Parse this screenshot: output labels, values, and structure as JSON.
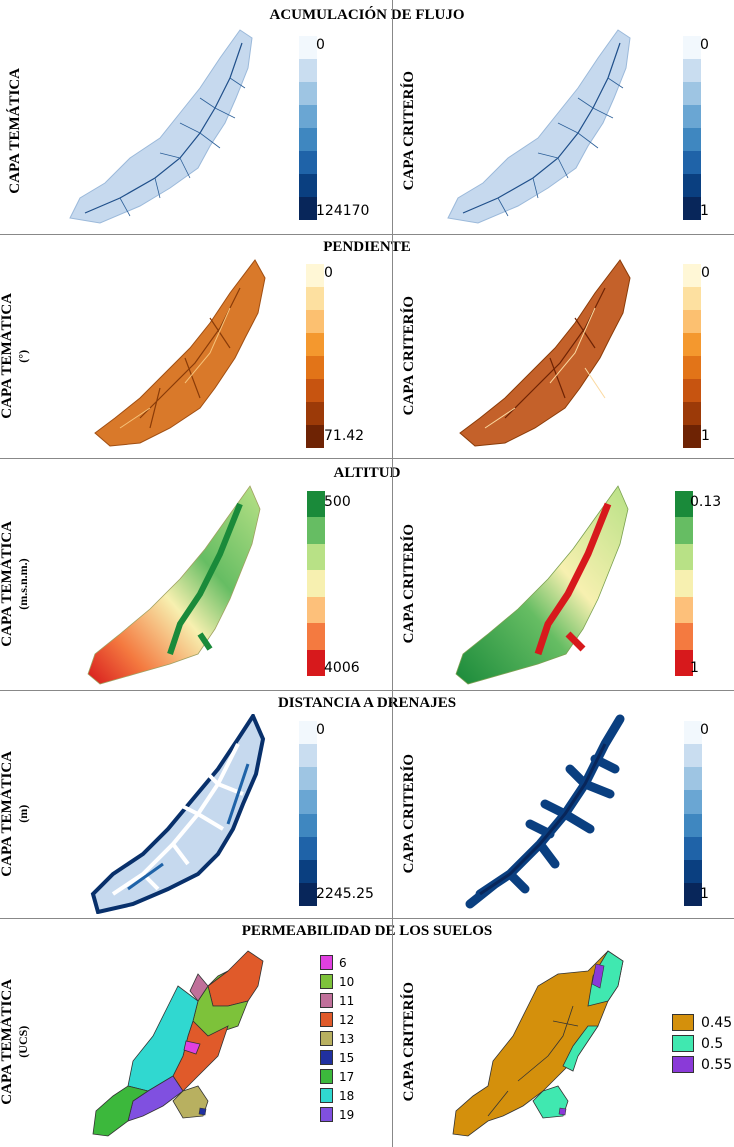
{
  "sections": [
    {
      "title": "ACUMULACIÓN DE FLUJO",
      "left_label": "CAPA TEMÁTICA",
      "left_sub": "",
      "right_label": "CAPA CRITERÍO",
      "left_legend": {
        "top": "0",
        "bottom": "124170"
      },
      "right_legend": {
        "top": "0",
        "bottom": "1"
      }
    },
    {
      "title": "PENDIENTE",
      "left_label": "CAPA TEMÁTICA",
      "left_sub": "(°)",
      "right_label": "CAPA CRITERÍO",
      "left_legend": {
        "top": "0",
        "bottom": "71.42"
      },
      "right_legend": {
        "top": "0",
        "bottom": "1"
      }
    },
    {
      "title": "ALTITUD",
      "left_label": "CAPA TEMÁTICA",
      "left_sub": "(m.s.n.m.)",
      "right_label": "CAPA CRITERÍO",
      "left_legend": {
        "top": "500",
        "bottom": "4006"
      },
      "right_legend": {
        "top": "0.13",
        "bottom": "1"
      }
    },
    {
      "title": "DISTANCIA A DRENAJES",
      "left_label": "CAPA TEMÁTICA",
      "left_sub": "(m)",
      "right_label": "CAPA CRITERÍO",
      "left_legend": {
        "top": "0",
        "bottom": "2245.25"
      },
      "right_legend": {
        "top": "0",
        "bottom": "1"
      }
    },
    {
      "title": "PERMEABILIDAD DE LOS SUELOS",
      "left_label": "CAPA TEMÁTICA",
      "left_sub": "(UCS)",
      "right_label": "CAPA CRITERÍO"
    }
  ],
  "soil_classes": [
    {
      "label": "6",
      "color": "#e040e0"
    },
    {
      "label": "10",
      "color": "#7dc23a"
    },
    {
      "label": "11",
      "color": "#c0709a"
    },
    {
      "label": "12",
      "color": "#e05a2a"
    },
    {
      "label": "13",
      "color": "#b8b060"
    },
    {
      "label": "15",
      "color": "#2030a0"
    },
    {
      "label": "17",
      "color": "#3cb83c"
    },
    {
      "label": "18",
      "color": "#30d8d0"
    },
    {
      "label": "19",
      "color": "#8050e0"
    }
  ],
  "criterion_classes": [
    {
      "label": "0.45",
      "color": "#d4900c"
    },
    {
      "label": "0.5",
      "color": "#40e8b0"
    },
    {
      "label": "0.55",
      "color": "#8a3ad8"
    }
  ],
  "palettes": {
    "blues": [
      "#f2f8fd",
      "#c9ddf0",
      "#9ec5e3",
      "#6aa6d3",
      "#3f87c0",
      "#1f63a8",
      "#0a3f80",
      "#08265a"
    ],
    "oranges": [
      "#fff7d6",
      "#fde0a0",
      "#fcc070",
      "#f4982e",
      "#e27418",
      "#c75410",
      "#9c3a08",
      "#6e2304"
    ],
    "altitude": [
      "#1a8a3a",
      "#66bd63",
      "#b8e186",
      "#f7f0b0",
      "#fdc07a",
      "#f47a40",
      "#d7191c"
    ]
  }
}
